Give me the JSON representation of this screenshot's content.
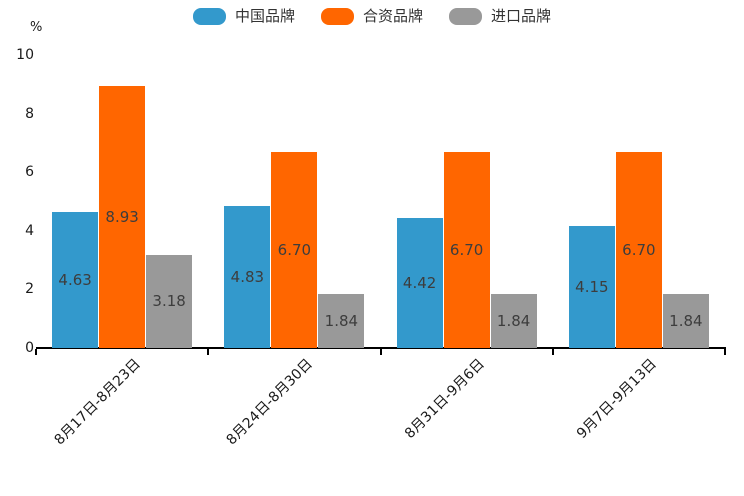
{
  "chart_data": {
    "type": "bar",
    "title": "",
    "unit_label": "%",
    "categories": [
      "8月17日-8月23日",
      "8月24日-8月30日",
      "8月31日-9月6日",
      "9月7日-9月13日"
    ],
    "series": [
      {
        "name": "中国品牌",
        "color": "#3399CC",
        "values": [
          4.63,
          4.83,
          4.42,
          4.15
        ],
        "labels": [
          "4.63",
          "4.83",
          "4.42",
          "4.15"
        ]
      },
      {
        "name": "合资品牌",
        "color": "#FF6600",
        "values": [
          8.93,
          6.7,
          6.7,
          6.7
        ],
        "labels": [
          "8.93",
          "6.70",
          "6.70",
          "6.70"
        ]
      },
      {
        "name": "进口品牌",
        "color": "#999999",
        "values": [
          3.18,
          1.84,
          1.84,
          1.84
        ],
        "labels": [
          "3.18",
          "1.84",
          "1.84",
          "1.84"
        ]
      }
    ],
    "ylim": [
      0,
      10
    ],
    "yticks": [
      "0",
      "2",
      "4",
      "6",
      "8",
      "10"
    ],
    "grid": false,
    "legend_position": "top",
    "value_label_position": "inside-center",
    "axis_color": "#000000",
    "value_label_color": "#3d3d3d"
  }
}
